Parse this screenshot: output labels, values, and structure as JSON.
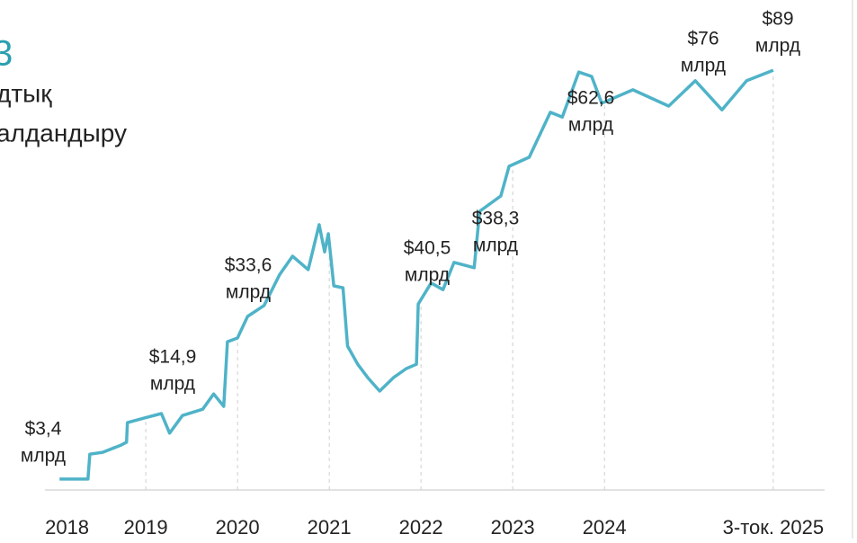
{
  "chart_data": {
    "type": "line",
    "title_lines": [
      "3",
      "дтық",
      "алдандыру"
    ],
    "series": [
      {
        "name": null,
        "color": "#4fb3c8",
        "x": [
          2018.06,
          2018.37,
          2018.39,
          2018.53,
          2018.73,
          2018.79,
          2018.8,
          2018.99,
          2019.17,
          2019.26,
          2019.4,
          2019.62,
          2019.74,
          2019.85,
          2019.89,
          2020.0,
          2020.11,
          2020.29,
          2020.46,
          2020.6,
          2020.77,
          2020.89,
          2020.95,
          2020.99,
          2021.05,
          2021.15,
          2021.2,
          2021.31,
          2021.42,
          2021.55,
          2021.7,
          2021.84,
          2021.95,
          2021.97,
          2022.11,
          2022.24,
          2022.36,
          2022.58,
          2022.64,
          2022.87,
          2022.96,
          2023.18,
          2023.41,
          2023.54,
          2023.72,
          2023.86,
          2023.97,
          2024.31,
          2024.7,
          2024.99,
          2025.28,
          2025.55,
          2025.84
        ],
        "values": [
          3.4,
          3.4,
          8.6,
          9.0,
          10.5,
          11.1,
          15.2,
          16.2,
          17.1,
          13.0,
          16.7,
          18.0,
          21.2,
          18.6,
          32.1,
          32.9,
          37.4,
          39.7,
          46.2,
          50.0,
          47.2,
          56.6,
          50.9,
          54.7,
          43.8,
          43.4,
          31.2,
          27.4,
          24.6,
          21.8,
          24.6,
          26.5,
          27.4,
          40.0,
          44.4,
          43.0,
          48.7,
          47.6,
          59.4,
          62.6,
          68.8,
          70.7,
          80.1,
          79.1,
          88.5,
          87.6,
          82.0,
          84.8,
          81.4,
          86.7,
          80.6,
          86.7,
          88.9
        ]
      }
    ],
    "xlim": [
      2017.95,
      2025.9
    ],
    "xticks": [
      2018,
      2019,
      2020,
      2021,
      2022,
      2023,
      2024,
      {
        "value": 2025.84,
        "label": "3-ток. 2025"
      }
    ],
    "ylim": [
      0,
      100
    ],
    "annotations": [
      [
        "$3,4",
        "млрд"
      ],
      [
        "$14,9",
        "млрд"
      ],
      [
        "$33,6",
        "млрд"
      ],
      [
        "$40,5",
        "млрд"
      ],
      [
        "$38,3",
        "млрд"
      ],
      [
        "$62,6",
        "млрд"
      ],
      [
        "$76",
        "млрд"
      ],
      [
        "$89",
        "млрд"
      ]
    ]
  }
}
